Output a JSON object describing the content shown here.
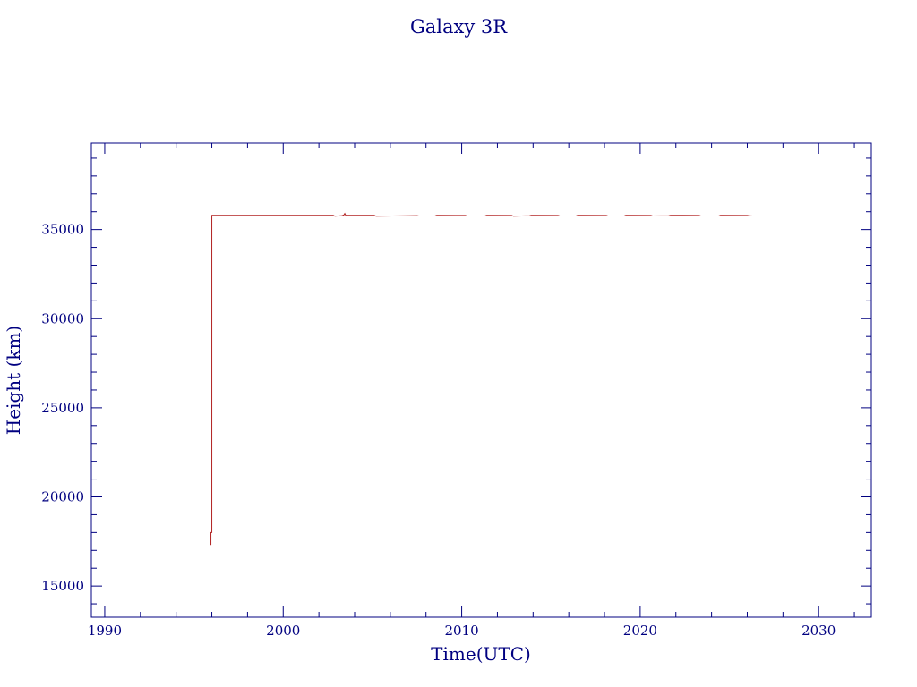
{
  "colors": {
    "axis": "#000080",
    "series": "#b22222",
    "background": "#ffffff"
  },
  "chart_data": {
    "type": "line",
    "title": "Galaxy 3R",
    "xlabel": "Time(UTC)",
    "ylabel": "Height (km)",
    "xlim": [
      1989.25,
      2032.95
    ],
    "ylim": [
      13250,
      39850
    ],
    "x_ticks": [
      1990,
      2000,
      2010,
      2020,
      2030
    ],
    "x_tick_labels": [
      "1990",
      "2000",
      "2010",
      "2020",
      "2030"
    ],
    "x_minor_step": 2,
    "y_ticks": [
      15000,
      20000,
      25000,
      30000,
      35000
    ],
    "y_tick_labels": [
      "15000",
      "20000",
      "25000",
      "30000",
      "35000"
    ],
    "y_minor_step": 1000,
    "grid": false,
    "legend": "none",
    "series": [
      {
        "x": [
          1995.95,
          1995.95,
          1996.0,
          1996.0,
          1996.05,
          2002.8,
          2002.9,
          2003.3,
          2003.4,
          2003.45,
          2003.5,
          2005.1,
          2005.2,
          2007.5,
          2007.6,
          2008.5,
          2008.6,
          2010.2,
          2010.3,
          2011.3,
          2011.4,
          2012.8,
          2012.9,
          2013.8,
          2013.9,
          2015.4,
          2015.5,
          2016.4,
          2016.5,
          2018.1,
          2018.2,
          2019.1,
          2019.2,
          2020.6,
          2020.7,
          2021.6,
          2021.7,
          2023.3,
          2023.4,
          2024.4,
          2024.5,
          2026.0,
          2026.1,
          2026.3
        ],
        "y": [
          17300,
          18000,
          18000,
          35800,
          35800,
          35800,
          35750,
          35780,
          35820,
          35900,
          35800,
          35800,
          35750,
          35780,
          35760,
          35760,
          35800,
          35790,
          35760,
          35760,
          35800,
          35790,
          35750,
          35770,
          35800,
          35790,
          35760,
          35760,
          35800,
          35790,
          35760,
          35760,
          35800,
          35790,
          35760,
          35770,
          35800,
          35790,
          35760,
          35760,
          35800,
          35790,
          35770,
          35760
        ]
      }
    ]
  }
}
